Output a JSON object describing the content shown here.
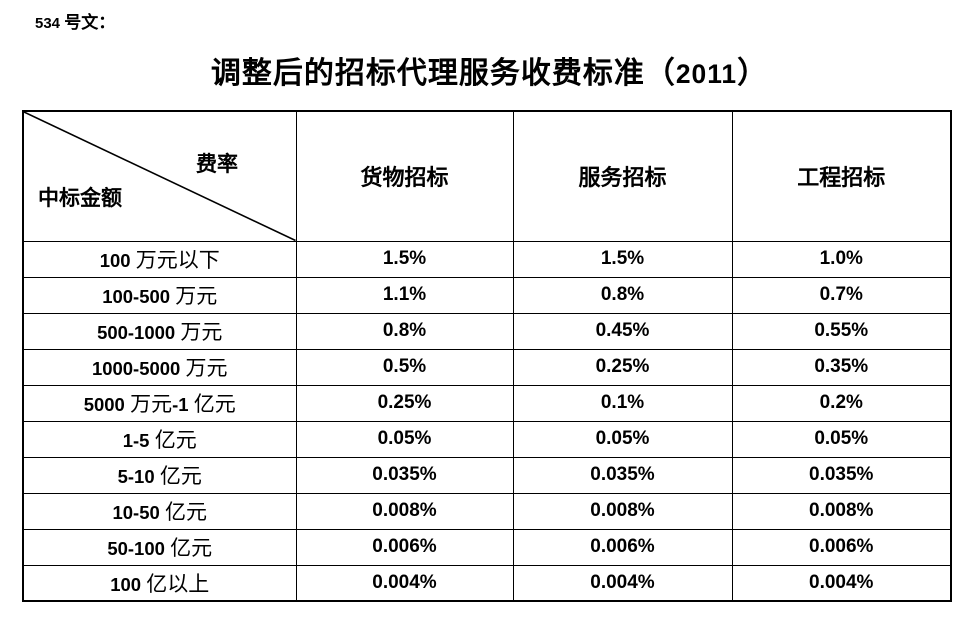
{
  "page": {
    "doc_label": "534 号文：",
    "title": "调整后的招标代理服务收费标准（2011）"
  },
  "table": {
    "corner": {
      "top_right": "费率",
      "bottom_left": "中标金额"
    },
    "columns": [
      "货物招标",
      "服务招标",
      "工程招标"
    ],
    "rows": [
      {
        "label": "100 万元以下",
        "values": [
          "1.5%",
          "1.5%",
          "1.0%"
        ]
      },
      {
        "label": "100-500 万元",
        "values": [
          "1.1%",
          "0.8%",
          "0.7%"
        ]
      },
      {
        "label": "500-1000 万元",
        "values": [
          "0.8%",
          "0.45%",
          "0.55%"
        ]
      },
      {
        "label": "1000-5000 万元",
        "values": [
          "0.5%",
          "0.25%",
          "0.35%"
        ]
      },
      {
        "label": "5000 万元-1 亿元",
        "values": [
          "0.25%",
          "0.1%",
          "0.2%"
        ]
      },
      {
        "label": "1-5 亿元",
        "values": [
          "0.05%",
          "0.05%",
          "0.05%"
        ]
      },
      {
        "label": "5-10 亿元",
        "values": [
          "0.035%",
          "0.035%",
          "0.035%"
        ]
      },
      {
        "label": "10-50 亿元",
        "values": [
          "0.008%",
          "0.008%",
          "0.008%"
        ]
      },
      {
        "label": "50-100 亿元",
        "values": [
          "0.006%",
          "0.006%",
          "0.006%"
        ]
      },
      {
        "label": "100 亿以上",
        "values": [
          "0.004%",
          "0.004%",
          "0.004%"
        ]
      }
    ]
  },
  "colors": {
    "text": "#000000",
    "border": "#000000",
    "background": "#ffffff"
  }
}
